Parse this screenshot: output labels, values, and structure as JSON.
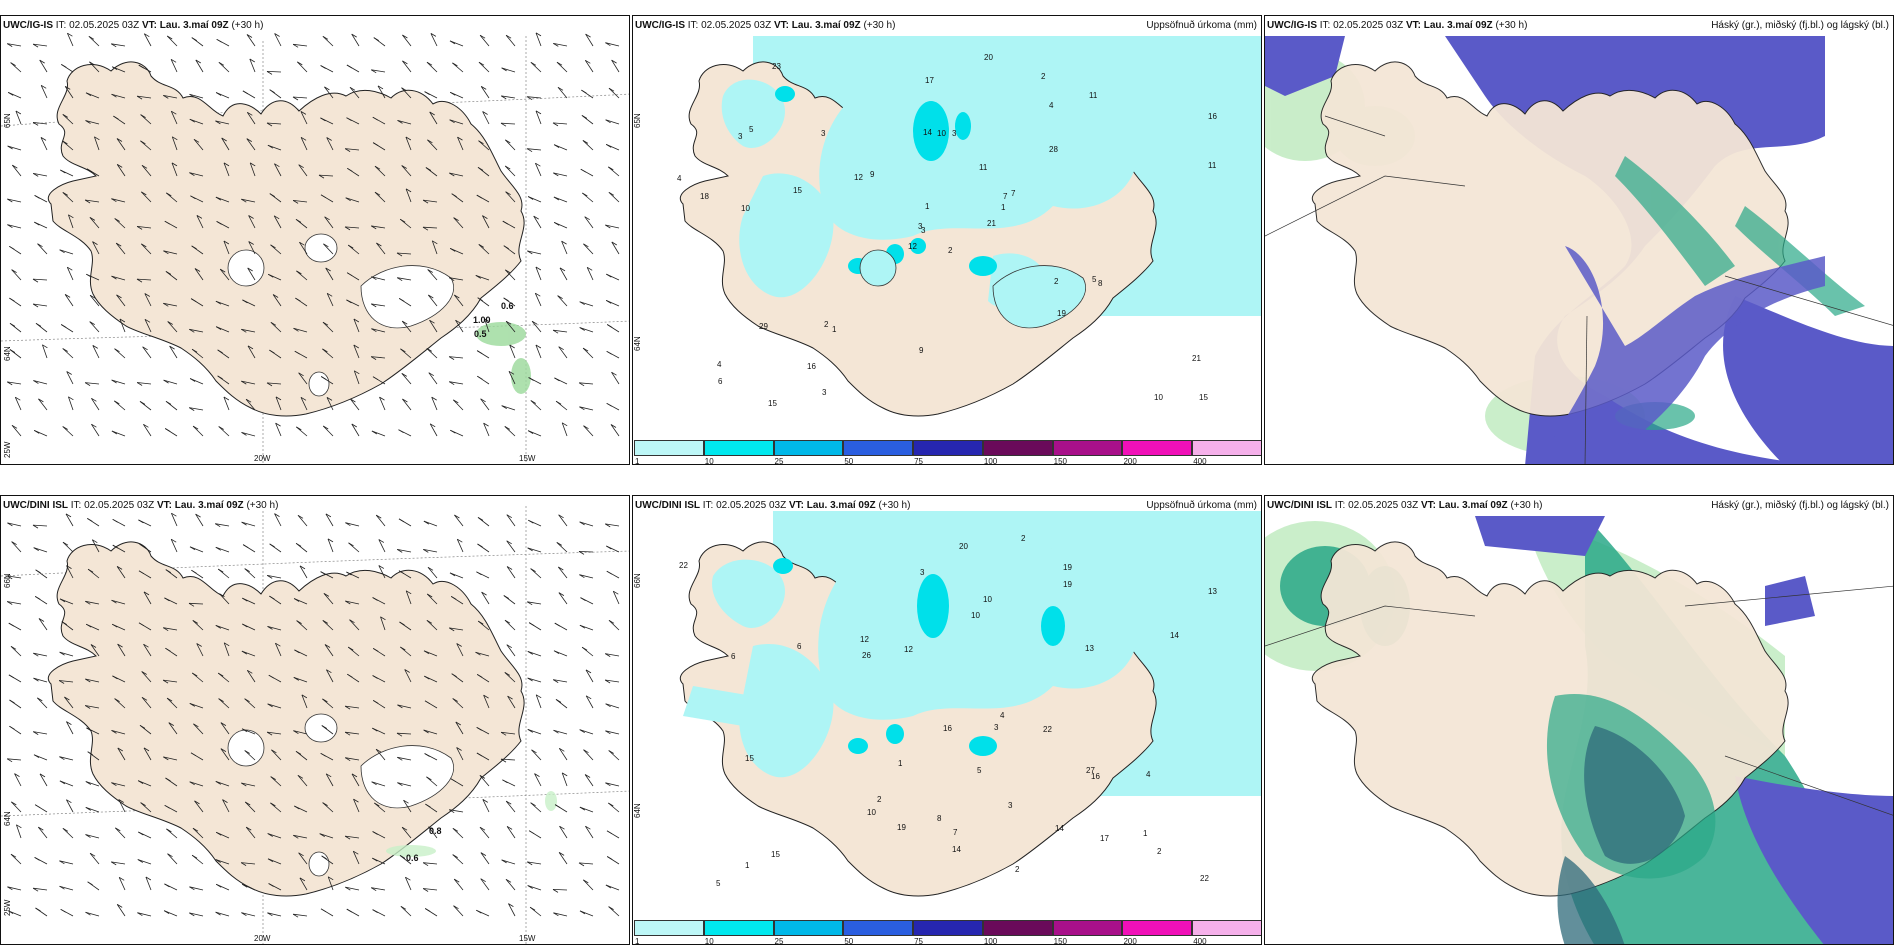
{
  "panels": [
    {
      "model": "UWC/IG-IS",
      "it": "02.05.2025 03Z",
      "vt": "Lau. 3.maí 09Z",
      "lead": "(+30 h)",
      "field": "",
      "lat1": "65N",
      "lat2": "64N",
      "lon1": "20W",
      "lon2": "15W",
      "corner": "25W",
      "values": [
        "0.6",
        "1.00",
        "0.5"
      ]
    },
    {
      "model": "UWC/IG-IS",
      "it": "02.05.2025 03Z",
      "vt": "Lau. 3.maí 09Z",
      "lead": "(+30 h)",
      "field": "Uppsöfnuð úrkoma (mm)",
      "lat1": "65N",
      "lat2": "64N",
      "values": [
        "2",
        "3",
        "3",
        "4",
        "7",
        "1",
        "2",
        "3",
        "4",
        "21",
        "23",
        "15",
        "10",
        "16",
        "12",
        "28",
        "15",
        "14",
        "11",
        "29",
        "9",
        "6",
        "16",
        "10",
        "7",
        "8",
        "5",
        "17",
        "18",
        "2",
        "11",
        "3",
        "9",
        "1",
        "3",
        "11",
        "2",
        "10",
        "21",
        "5",
        "20",
        "12",
        "15",
        "19",
        "3",
        "4",
        "1"
      ]
    },
    {
      "model": "UWC/IG-IS",
      "it": "02.05.2025 03Z",
      "vt": "Lau. 3.maí 09Z",
      "lead": "(+30 h)",
      "field": "Háský (gr.), miðský (fj.bl.) og lágský (bl.)"
    },
    {
      "model": "UWC/DINI ISL",
      "it": "02.05.2025 03Z",
      "vt": "Lau. 3.maí 09Z",
      "lead": "(+30 h)",
      "field": "",
      "lat1": "66N",
      "lat2": "64N",
      "lon1": "20W",
      "lon2": "15W",
      "corner": "25W",
      "values": [
        "0.8",
        "0.6"
      ]
    },
    {
      "model": "UWC/DINI ISL",
      "it": "02.05.2025 03Z",
      "vt": "Lau. 3.maí 09Z",
      "lead": "(+30 h)",
      "field": "Uppsöfnuð úrkoma (mm)",
      "lat1": "66N",
      "lat2": "64N",
      "values": [
        "1",
        "4",
        "4",
        "5",
        "3",
        "2",
        "1",
        "19",
        "17",
        "10",
        "22",
        "26",
        "19",
        "20",
        "14",
        "12",
        "27",
        "15",
        "16",
        "13",
        "22",
        "15",
        "14",
        "22",
        "16",
        "19",
        "12",
        "10",
        "14",
        "3",
        "2",
        "1",
        "10",
        "5",
        "3",
        "2",
        "7",
        "13",
        "6",
        "8",
        "6",
        "2"
      ]
    },
    {
      "model": "UWC/DINI ISL",
      "it": "02.05.2025 03Z",
      "vt": "Lau. 3.maí 09Z",
      "lead": "(+30 h)",
      "field": "Háský (gr.), miðský (fj.bl.) og lágský (bl.)"
    }
  ],
  "colorbar": {
    "ticks": [
      "1",
      "10",
      "25",
      "50",
      "75",
      "100",
      "150",
      "200",
      "400"
    ],
    "colors": [
      "#bdf7f7",
      "#00e8ee",
      "#00b8e8",
      "#2a5ee0",
      "#2626b0",
      "#6a0a5a",
      "#a8108a",
      "#f010b8",
      "#f5b0ea"
    ]
  },
  "colors": {
    "land": "#f4e6d6",
    "precip": "#aef5f5",
    "low_cloud": "#5a5ac8",
    "mid_cloud": "#2aa888",
    "high_cloud": "#c4ecc4"
  }
}
